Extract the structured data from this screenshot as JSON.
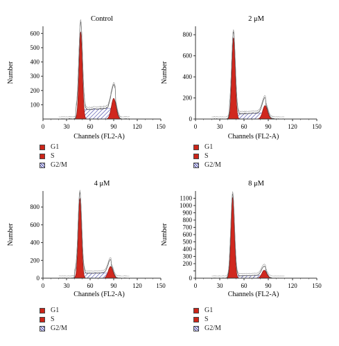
{
  "chart_data": [
    {
      "type": "area",
      "title": "Control",
      "xlabel": "Channels (FL2-A)",
      "ylabel": "Number",
      "xlim": [
        0,
        150
      ],
      "ylim": [
        0,
        650
      ],
      "xticks": [
        0,
        30,
        60,
        90,
        120,
        150
      ],
      "yticks": [
        100,
        200,
        300,
        400,
        500,
        600
      ],
      "ytick_labels": [
        "100",
        "200",
        "300",
        "400",
        "500",
        "600"
      ],
      "g1": {
        "peak_x": 48,
        "peak_y": 610
      },
      "s": {
        "start_x": 42,
        "end_x": 92,
        "level_start": 62,
        "level_end": 78
      },
      "g2m": {
        "peak_x": 90,
        "peak_y": 145
      },
      "grid": false,
      "legend": [
        "G1",
        "S",
        "G2/M"
      ],
      "legend_position": "below"
    },
    {
      "type": "area",
      "title": "2 μM",
      "xlabel": "Channels (FL2-A)",
      "ylabel": "Number",
      "xlim": [
        0,
        150
      ],
      "ylim": [
        0,
        880
      ],
      "xticks": [
        0,
        30,
        60,
        90,
        120,
        150
      ],
      "yticks": [
        0,
        200,
        400,
        600,
        800
      ],
      "ytick_labels": [
        "0",
        "200",
        "400",
        "600",
        "800"
      ],
      "g1": {
        "peak_x": 47,
        "peak_y": 770
      },
      "s": {
        "start_x": 42,
        "end_x": 87,
        "level_start": 45,
        "level_end": 60
      },
      "g2m": {
        "peak_x": 86,
        "peak_y": 128
      },
      "grid": false,
      "legend": [
        "G1",
        "S",
        "G2/M"
      ],
      "legend_position": "below"
    },
    {
      "type": "area",
      "title": "4 μM",
      "xlabel": "Channels (FL2-A)",
      "ylabel": "Number",
      "xlim": [
        0,
        150
      ],
      "ylim": [
        0,
        980
      ],
      "xticks": [
        0,
        30,
        60,
        90,
        120,
        150
      ],
      "yticks": [
        0,
        200,
        400,
        600,
        800
      ],
      "ytick_labels": [
        "0",
        "200",
        "400",
        "600",
        "800"
      ],
      "g1": {
        "peak_x": 47,
        "peak_y": 895
      },
      "s": {
        "start_x": 40,
        "end_x": 87,
        "level_start": 55,
        "level_end": 60
      },
      "g2m": {
        "peak_x": 86,
        "peak_y": 132
      },
      "grid": false,
      "legend": [
        "G1",
        "S",
        "G2/M"
      ],
      "legend_position": "below"
    },
    {
      "type": "area",
      "title": "8 μM",
      "xlabel": "Channels (FL2-A)",
      "ylabel": "Number",
      "xlim": [
        0,
        150
      ],
      "ylim": [
        0,
        1200
      ],
      "xticks": [
        0,
        30,
        60,
        90,
        120,
        150
      ],
      "yticks": [
        0,
        100,
        200,
        300,
        400,
        500,
        600,
        700,
        800,
        900,
        1000,
        1100
      ],
      "ytick_labels": [
        "0",
        "",
        "200",
        "300",
        "400",
        "500",
        "600",
        "700",
        "800",
        "900",
        "1000",
        "1100"
      ],
      "g1": {
        "peak_x": 46,
        "peak_y": 1110
      },
      "s": {
        "start_x": 42,
        "end_x": 87,
        "level_start": 30,
        "level_end": 40
      },
      "g2m": {
        "peak_x": 85,
        "peak_y": 110
      },
      "grid": false,
      "legend": [
        "G1",
        "S",
        "G2/M"
      ],
      "legend_position": "below"
    }
  ],
  "colors": {
    "g1": "#d0281e",
    "s": "#cc2418",
    "g2m_hatch": "#3a3aa0",
    "envelope": "#555555",
    "axis": "#333333",
    "legend_g1": "#cc2418",
    "legend_s": "#cc2418"
  }
}
